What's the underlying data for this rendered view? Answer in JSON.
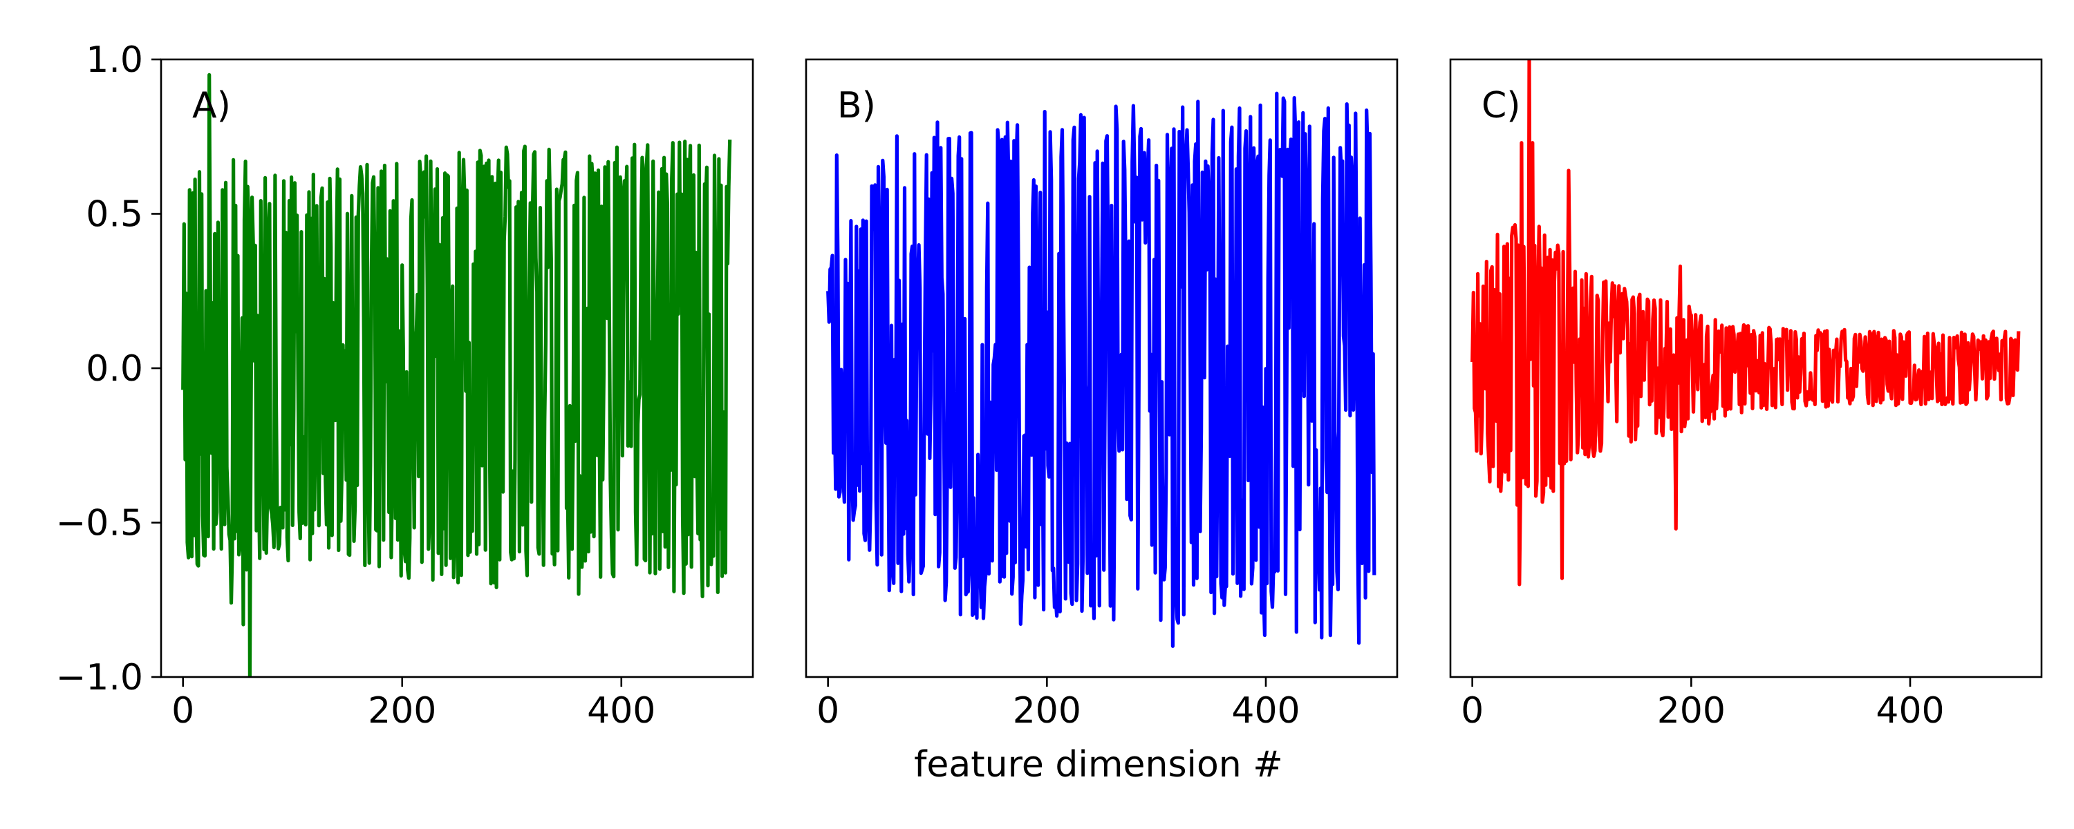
{
  "chart_data": {
    "type": "line",
    "xlabel": "feature dimension #",
    "shared_ylim": [
      -1.0,
      1.0
    ],
    "y_ticks": [
      1.0,
      0.5,
      0.0,
      -0.5,
      -1.0
    ],
    "y_tick_labels": [
      "1.0",
      "0.5",
      "0.0",
      "−0.5",
      "−1.0"
    ],
    "x_ticks": [
      0,
      200,
      400
    ],
    "x_tick_labels": [
      "0",
      "200",
      "400"
    ],
    "xlim": [
      -20,
      520
    ],
    "grid": false,
    "legend": "none",
    "n_points": 500,
    "panels": [
      {
        "label": "A)",
        "color": "#008000",
        "series": [
          {
            "x_step": 1,
            "amplitude_envelope": [
              [
                0,
                0.62
              ],
              [
                50,
                0.68
              ],
              [
                100,
                0.62
              ],
              [
                200,
                0.68
              ],
              [
                300,
                0.72
              ],
              [
                400,
                0.74
              ],
              [
                499,
                0.74
              ]
            ],
            "notable_points": [
              [
                24,
                0.95
              ],
              [
                61,
                -1.0
              ],
              [
                55,
                -0.83
              ],
              [
                44,
                -0.76
              ],
              [
                14,
                -0.64
              ]
            ],
            "end_points": [
              [
                0,
                -0.07
              ],
              [
                499,
                0.74
              ]
            ]
          }
        ]
      },
      {
        "label": "B)",
        "color": "#0000ff",
        "series": [
          {
            "x_step": 1,
            "amplitude_envelope": [
              [
                0,
                0.35
              ],
              [
                30,
                0.55
              ],
              [
                60,
                0.75
              ],
              [
                100,
                0.8
              ],
              [
                200,
                0.84
              ],
              [
                300,
                0.86
              ],
              [
                400,
                0.88
              ],
              [
                499,
                0.88
              ]
            ],
            "notable_points": [
              [
                8,
                0.69
              ],
              [
                19,
                -0.62
              ],
              [
                315,
                -0.9
              ],
              [
                485,
                -0.89
              ],
              [
                410,
                0.89
              ]
            ],
            "end_points": [
              [
                0,
                0.25
              ],
              [
                499,
                -0.67
              ]
            ]
          }
        ]
      },
      {
        "label": "C)",
        "color": "#ff0000",
        "series": [
          {
            "x_step": 1,
            "amplitude_envelope": [
              [
                0,
                0.3
              ],
              [
                25,
                0.45
              ],
              [
                50,
                0.5
              ],
              [
                100,
                0.32
              ],
              [
                150,
                0.25
              ],
              [
                200,
                0.2
              ],
              [
                250,
                0.14
              ],
              [
                300,
                0.13
              ],
              [
                400,
                0.12
              ],
              [
                499,
                0.12
              ]
            ],
            "notable_points": [
              [
                52,
                1.0
              ],
              [
                45,
                0.73
              ],
              [
                55,
                0.73
              ],
              [
                43,
                -0.7
              ],
              [
                82,
                -0.68
              ],
              [
                88,
                0.64
              ],
              [
                186,
                -0.52
              ],
              [
                190,
                0.33
              ]
            ],
            "end_points": [
              [
                0,
                0.02
              ],
              [
                499,
                0.12
              ]
            ]
          }
        ]
      }
    ]
  }
}
